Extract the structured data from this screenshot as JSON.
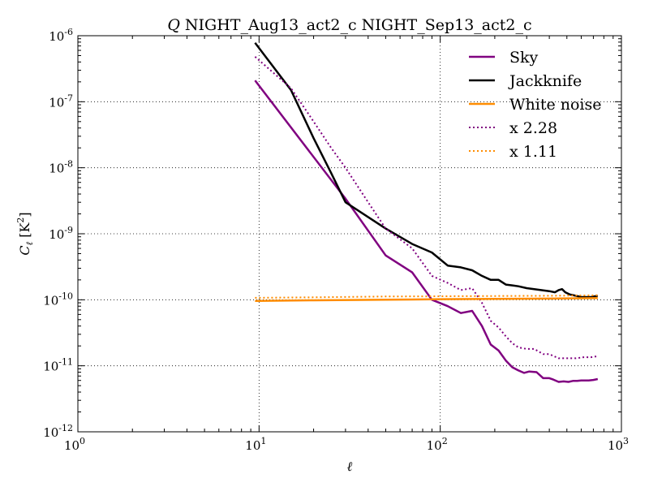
{
  "chart_data": {
    "type": "line",
    "title": "Q NIGHT_Aug13_act2_c NIGHT_Sep13_act2_c",
    "title_symbol": "Q",
    "title_rest": "NIGHT_Aug13_act2_c NIGHT_Sep13_act2_c",
    "xlabel": "ℓ",
    "ylabel_symbol": "C",
    "ylabel_subscript": "ℓ",
    "ylabel_unit": "[K",
    "ylabel_unit_exp": "2",
    "ylabel_unit_close": "]",
    "xscale": "log",
    "yscale": "log",
    "xlim": [
      1,
      1000
    ],
    "ylim": [
      1e-12,
      1e-06
    ],
    "grid": true,
    "legend_position": "top-right",
    "x_ticks": [
      {
        "value": 1,
        "base": "10",
        "exp": "0"
      },
      {
        "value": 10,
        "base": "10",
        "exp": "1"
      },
      {
        "value": 100,
        "base": "10",
        "exp": "2"
      },
      {
        "value": 1000,
        "base": "10",
        "exp": "3"
      }
    ],
    "y_ticks": [
      {
        "value": 1e-12,
        "base": "10",
        "exp": "-12"
      },
      {
        "value": 1e-11,
        "base": "10",
        "exp": "-11"
      },
      {
        "value": 1e-10,
        "base": "10",
        "exp": "-10"
      },
      {
        "value": 1e-09,
        "base": "10",
        "exp": "-9"
      },
      {
        "value": 1e-08,
        "base": "10",
        "exp": "-8"
      },
      {
        "value": 1e-07,
        "base": "10",
        "exp": "-7"
      },
      {
        "value": 1e-06,
        "base": "10",
        "exp": "-6"
      }
    ],
    "series": [
      {
        "name": "Sky",
        "color": "#800080",
        "style": "solid",
        "points": [
          [
            9.5,
            2.1e-07
          ],
          [
            30,
            3.4e-09
          ],
          [
            50,
            4.7e-10
          ],
          [
            70,
            2.6e-10
          ],
          [
            90,
            1e-10
          ],
          [
            110,
            8e-11
          ],
          [
            130,
            6.3e-11
          ],
          [
            150,
            6.8e-11
          ],
          [
            170,
            4e-11
          ],
          [
            190,
            2.1e-11
          ],
          [
            210,
            1.7e-11
          ],
          [
            230,
            1.2e-11
          ],
          [
            250,
            9.5e-12
          ],
          [
            270,
            8.5e-12
          ],
          [
            290,
            7.8e-12
          ],
          [
            310,
            8.2e-12
          ],
          [
            340,
            8e-12
          ],
          [
            370,
            6.5e-12
          ],
          [
            400,
            6.5e-12
          ],
          [
            420,
            6.2e-12
          ],
          [
            450,
            5.7e-12
          ],
          [
            480,
            5.8e-12
          ],
          [
            510,
            5.7e-12
          ],
          [
            540,
            5.9e-12
          ],
          [
            570,
            5.9e-12
          ],
          [
            600,
            6e-12
          ],
          [
            630,
            6e-12
          ],
          [
            660,
            6e-12
          ],
          [
            700,
            6.1e-12
          ],
          [
            740,
            6.3e-12
          ]
        ]
      },
      {
        "name": "Jackknife",
        "color": "#000000",
        "style": "solid",
        "points": [
          [
            9.5,
            7.8e-07
          ],
          [
            15,
            1.5e-07
          ],
          [
            20,
            2.8e-08
          ],
          [
            25,
            8.3e-09
          ],
          [
            30,
            3e-09
          ],
          [
            50,
            1.2e-09
          ],
          [
            70,
            7e-10
          ],
          [
            90,
            5.2e-10
          ],
          [
            110,
            3.3e-10
          ],
          [
            130,
            3.1e-10
          ],
          [
            150,
            2.8e-10
          ],
          [
            170,
            2.3e-10
          ],
          [
            190,
            2e-10
          ],
          [
            210,
            2e-10
          ],
          [
            230,
            1.7e-10
          ],
          [
            250,
            1.65e-10
          ],
          [
            270,
            1.6e-10
          ],
          [
            300,
            1.5e-10
          ],
          [
            330,
            1.45e-10
          ],
          [
            360,
            1.4e-10
          ],
          [
            400,
            1.35e-10
          ],
          [
            430,
            1.3e-10
          ],
          [
            450,
            1.4e-10
          ],
          [
            470,
            1.45e-10
          ],
          [
            490,
            1.3e-10
          ],
          [
            520,
            1.2e-10
          ],
          [
            560,
            1.15e-10
          ],
          [
            600,
            1.1e-10
          ],
          [
            640,
            1.1e-10
          ],
          [
            680,
            1.1e-10
          ],
          [
            740,
            1.15e-10
          ]
        ]
      },
      {
        "name": "White noise",
        "color": "#ff8c00",
        "style": "solid",
        "points": [
          [
            9.5,
            9.6e-11
          ],
          [
            20,
            9.8e-11
          ],
          [
            50,
            1e-10
          ],
          [
            100,
            1.02e-10
          ],
          [
            200,
            1.03e-10
          ],
          [
            400,
            1.04e-10
          ],
          [
            740,
            1.06e-10
          ]
        ]
      },
      {
        "name": "x 2.28",
        "color": "#800080",
        "style": "dotted",
        "points": [
          [
            9.5,
            4.8e-07
          ],
          [
            15,
            1.6e-07
          ],
          [
            20,
            5e-08
          ],
          [
            25,
            2e-08
          ],
          [
            30,
            1e-08
          ],
          [
            40,
            3e-09
          ],
          [
            50,
            1.2e-09
          ],
          [
            70,
            6e-10
          ],
          [
            90,
            2.3e-10
          ],
          [
            110,
            1.8e-10
          ],
          [
            130,
            1.4e-10
          ],
          [
            150,
            1.5e-10
          ],
          [
            170,
            9e-11
          ],
          [
            190,
            4.8e-11
          ],
          [
            210,
            3.8e-11
          ],
          [
            230,
            2.8e-11
          ],
          [
            250,
            2.2e-11
          ],
          [
            270,
            1.9e-11
          ],
          [
            300,
            1.8e-11
          ],
          [
            330,
            1.8e-11
          ],
          [
            370,
            1.5e-11
          ],
          [
            400,
            1.5e-11
          ],
          [
            450,
            1.3e-11
          ],
          [
            500,
            1.3e-11
          ],
          [
            560,
            1.3e-11
          ],
          [
            620,
            1.35e-11
          ],
          [
            680,
            1.35e-11
          ],
          [
            740,
            1.4e-11
          ]
        ]
      },
      {
        "name": "x 1.11",
        "color": "#ff8c00",
        "style": "dotted",
        "points": [
          [
            9.5,
            1.07e-10
          ],
          [
            20,
            1.09e-10
          ],
          [
            50,
            1.12e-10
          ],
          [
            100,
            1.13e-10
          ],
          [
            200,
            1.14e-10
          ],
          [
            400,
            1.15e-10
          ],
          [
            740,
            1.17e-10
          ]
        ]
      }
    ]
  }
}
